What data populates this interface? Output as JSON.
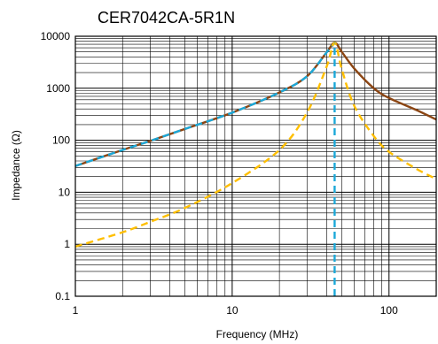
{
  "chart_data": {
    "type": "line",
    "title": "CER7042CA-5R1N",
    "xlabel": "Frequency (MHz)",
    "ylabel": "Impedance (Ω)",
    "x_scale": "log",
    "y_scale": "log",
    "xlim": [
      1,
      200
    ],
    "ylim": [
      0.1,
      10000
    ],
    "x_tick_labels": [
      "1",
      "10",
      "100"
    ],
    "y_tick_labels": [
      "0.1",
      "1",
      "10",
      "100",
      "1000",
      "10000"
    ],
    "grid": true,
    "legend": "none",
    "self_resonant_frequency_mhz": 45,
    "series": [
      {
        "color": "#8B4513",
        "style": "solid",
        "x": [
          1,
          2,
          3,
          5,
          10,
          20,
          30,
          40,
          45,
          50,
          60,
          80,
          100,
          150,
          200
        ],
        "y": [
          32,
          65,
          97,
          165,
          340,
          830,
          1700,
          4900,
          7500,
          5000,
          2400,
          1000,
          650,
          380,
          250
        ]
      },
      {
        "color": "#1BA8D8",
        "style": "dashed",
        "x": [
          1,
          2,
          3,
          5,
          10,
          20,
          30,
          40,
          45
        ],
        "y": [
          32,
          65,
          97,
          165,
          340,
          830,
          1700,
          4900,
          7500
        ]
      },
      {
        "color": "#FFBF00",
        "style": "dashed",
        "x": [
          1,
          2,
          3,
          5,
          10,
          20,
          30,
          40,
          45,
          50,
          60,
          80,
          100,
          150,
          200
        ],
        "y": [
          0.9,
          1.7,
          2.7,
          5,
          15,
          65,
          340,
          2600,
          7500,
          2300,
          460,
          120,
          60,
          28,
          18
        ]
      },
      {
        "color": "#1BA8D8",
        "style": "dashed",
        "x": [
          45,
          45
        ],
        "y": [
          0.1,
          7500
        ]
      }
    ]
  }
}
